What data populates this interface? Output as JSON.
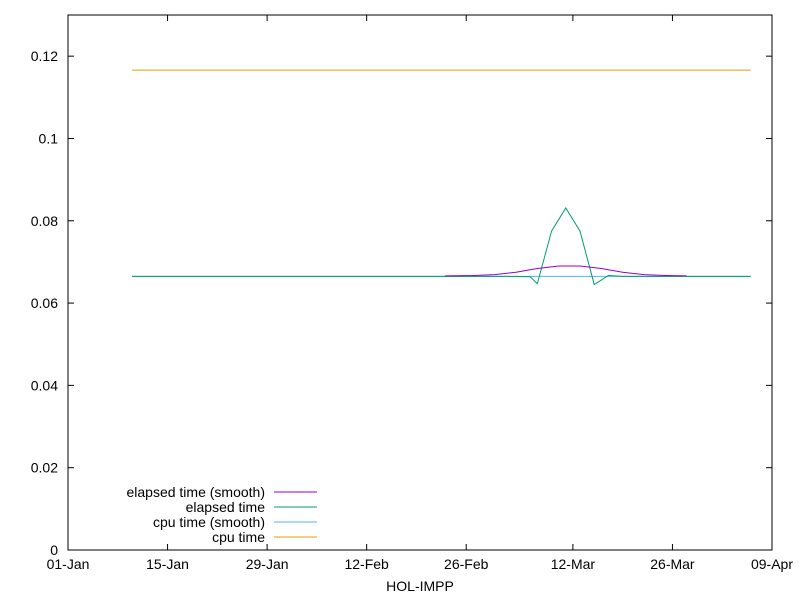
{
  "chart_data": {
    "type": "line",
    "xlabel": "HOL-IMPP",
    "ylabel": "",
    "xlim": [
      "2024-01-01",
      "2024-04-09"
    ],
    "ylim": [
      0,
      0.13
    ],
    "x_ticks": [
      "01-Jan",
      "15-Jan",
      "29-Jan",
      "12-Feb",
      "26-Feb",
      "12-Mar",
      "26-Mar",
      "09-Apr"
    ],
    "x_tick_dates": [
      "2024-01-01",
      "2024-01-15",
      "2024-01-29",
      "2024-02-12",
      "2024-02-26",
      "2024-03-12",
      "2024-03-26",
      "2024-04-09"
    ],
    "y_ticks": [
      "0",
      "0.02",
      "0.04",
      "0.06",
      "0.08",
      "0.1",
      "0.12"
    ],
    "y_tick_values": [
      0,
      0.02,
      0.04,
      0.06,
      0.08,
      0.1,
      0.12
    ],
    "grid": false,
    "legend_position": "bottom-left",
    "series": [
      {
        "name": "elapsed time (smooth)",
        "color": "#9400d3",
        "points": [
          [
            "2024-02-23",
            0.0666
          ],
          [
            "2024-02-27",
            0.0667
          ],
          [
            "2024-03-01",
            0.0669
          ],
          [
            "2024-03-04",
            0.0675
          ],
          [
            "2024-03-07",
            0.0684
          ],
          [
            "2024-03-10",
            0.069
          ],
          [
            "2024-03-13",
            0.069
          ],
          [
            "2024-03-16",
            0.0684
          ],
          [
            "2024-03-19",
            0.0675
          ],
          [
            "2024-03-22",
            0.0669
          ],
          [
            "2024-03-25",
            0.0667
          ],
          [
            "2024-03-28",
            0.0666
          ]
        ]
      },
      {
        "name": "elapsed time",
        "color": "#009e73",
        "points": [
          [
            "2024-01-10",
            0.0665
          ],
          [
            "2024-03-03",
            0.0665
          ],
          [
            "2024-03-06",
            0.0664
          ],
          [
            "2024-03-07",
            0.0647
          ],
          [
            "2024-03-09",
            0.0775
          ],
          [
            "2024-03-11",
            0.0831
          ],
          [
            "2024-03-13",
            0.0775
          ],
          [
            "2024-03-15",
            0.0645
          ],
          [
            "2024-03-17",
            0.0667
          ],
          [
            "2024-03-19",
            0.0665
          ],
          [
            "2024-04-06",
            0.0665
          ]
        ]
      },
      {
        "name": "cpu time (smooth)",
        "color": "#56b4e9",
        "points": [
          [
            "2024-01-10",
            0.0665
          ],
          [
            "2024-04-06",
            0.0665
          ]
        ]
      },
      {
        "name": "cpu time",
        "color": "#e69f00",
        "points": [
          [
            "2024-01-10",
            0.1166
          ],
          [
            "2024-04-06",
            0.1166
          ]
        ]
      }
    ]
  }
}
